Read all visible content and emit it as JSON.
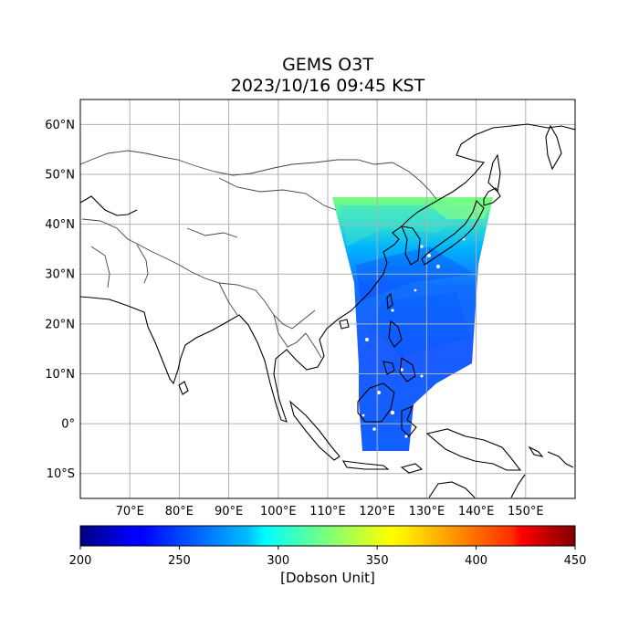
{
  "title": "GEMS O3T",
  "subtitle": "2023/10/16 09:45 KST",
  "colorbar": {
    "label": "[Dobson Unit]",
    "min": 200,
    "max": 450,
    "ticks": [
      "200",
      "250",
      "300",
      "350",
      "400",
      "450"
    ],
    "colormap": "jet"
  },
  "map": {
    "lon_range": [
      60,
      160
    ],
    "lat_range": [
      -15,
      65
    ],
    "lat_ticks": [
      {
        "value": 60,
        "label": "60°N"
      },
      {
        "value": 50,
        "label": "50°N"
      },
      {
        "value": 40,
        "label": "40°N"
      },
      {
        "value": 30,
        "label": "30°N"
      },
      {
        "value": 20,
        "label": "20°N"
      },
      {
        "value": 10,
        "label": "10°N"
      },
      {
        "value": 0,
        "label": "0°"
      },
      {
        "value": -10,
        "label": "10°S"
      }
    ],
    "lon_ticks": [
      {
        "value": 70,
        "label": "70°E"
      },
      {
        "value": 80,
        "label": "80°E"
      },
      {
        "value": 90,
        "label": "90°E"
      },
      {
        "value": 100,
        "label": "100°E"
      },
      {
        "value": 110,
        "label": "110°E"
      },
      {
        "value": 120,
        "label": "120°E"
      },
      {
        "value": 130,
        "label": "130°E"
      },
      {
        "value": 140,
        "label": "140°E"
      },
      {
        "value": 150,
        "label": "150°E"
      }
    ],
    "grid": true,
    "colors": {
      "coastline": "#000000",
      "borders": "#444444",
      "grid": "#b0b0b0",
      "data_low": "#0a3cff",
      "data_mid": "#00b4ff",
      "data_high": "#7dff7a"
    }
  }
}
